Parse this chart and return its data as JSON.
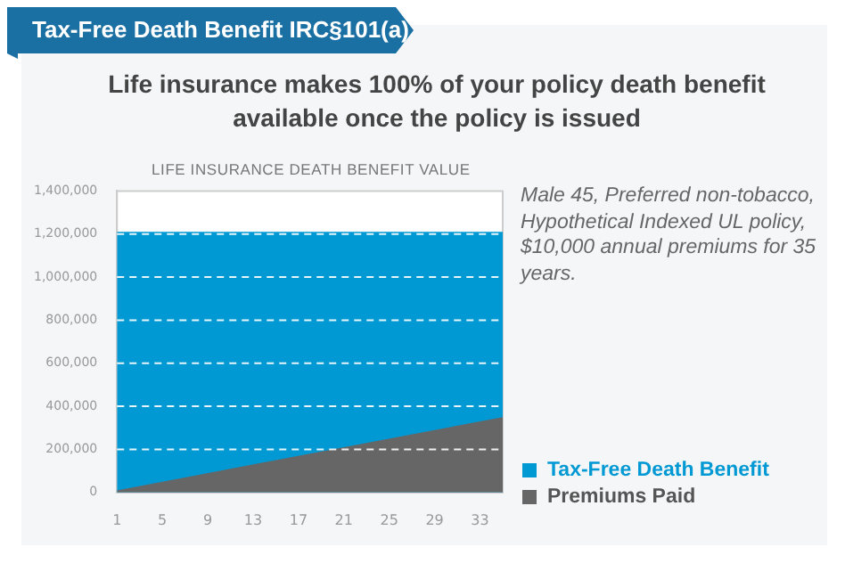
{
  "chart_data": {
    "type": "area",
    "title": "Tax-Free Death Benefit IRC§101(a)",
    "subtitle": "Life insurance makes 100% of your policy death benefit available once the policy is issued",
    "annotations": [
      "LIFE INSURANCE DEATH BENEFIT VALUE",
      "Male 45, Preferred non-tobacco, Hypothetical Indexed UL policy, $10,000 annual premiums for 35 years."
    ],
    "series": [
      {
        "name": "Tax-Free Death Benefit",
        "color": "#0099d4",
        "values": [
          1210000,
          1210000
        ]
      },
      {
        "name": "Premiums Paid",
        "color": "#666666",
        "values": [
          10000,
          350000
        ]
      }
    ],
    "x": [
      1,
      35
    ],
    "xlim": [
      1,
      35
    ],
    "xticks": [
      1,
      5,
      9,
      13,
      17,
      21,
      25,
      29,
      33
    ],
    "ylim": [
      0,
      1400000
    ],
    "yticks": [
      0,
      {
        "value": 200000,
        "label": "200,000"
      },
      {
        "value": 400000,
        "label": "400,000"
      },
      {
        "value": 600000,
        "label": "600,000"
      },
      {
        "value": 800000,
        "label": "800,000"
      },
      {
        "value": 1000000,
        "label": "1,000,000"
      },
      {
        "value": 1200000,
        "label": "1,200,000"
      },
      {
        "value": 1400000,
        "label": "1,400,000"
      }
    ],
    "grid": "y",
    "line_style": "dashed",
    "legend": "bottom right"
  }
}
